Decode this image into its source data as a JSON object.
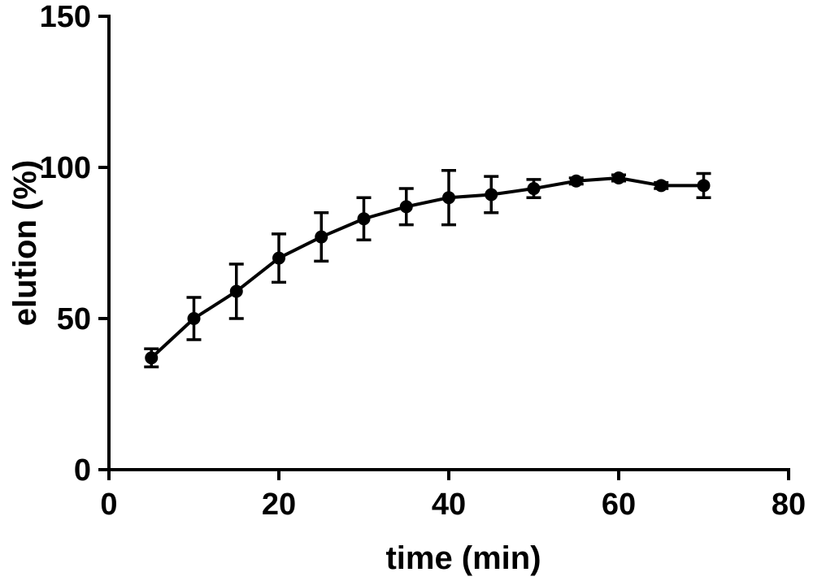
{
  "chart_data": {
    "type": "line",
    "title": "",
    "xlabel": "time (min)",
    "ylabel": "elution (%)",
    "xlim": [
      0,
      80
    ],
    "ylim": [
      0,
      150
    ],
    "x_ticks": [
      0,
      20,
      40,
      60,
      80
    ],
    "y_ticks": [
      0,
      50,
      100,
      150
    ],
    "grid": false,
    "series": [
      {
        "color": "#000000",
        "x": [
          5,
          10,
          15,
          20,
          25,
          30,
          35,
          40,
          45,
          50,
          55,
          60,
          65,
          70
        ],
        "y": [
          37,
          50,
          59,
          70,
          77,
          83,
          87,
          90,
          91,
          93,
          95.5,
          96.5,
          94,
          94
        ],
        "error": [
          3,
          7,
          9,
          8,
          8,
          7,
          6,
          9,
          6,
          3,
          1,
          1,
          1,
          4
        ]
      }
    ]
  }
}
